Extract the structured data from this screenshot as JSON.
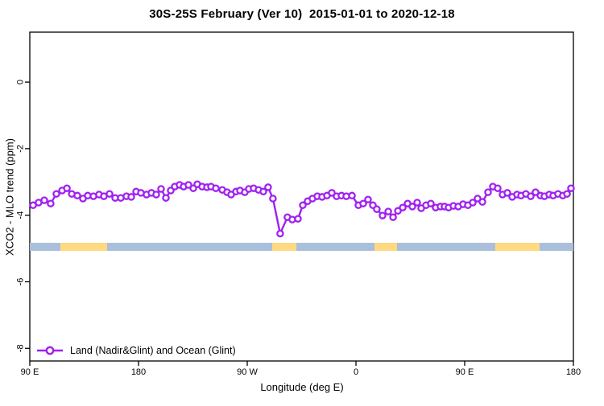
{
  "window": {
    "title": "30S-25S February (Ver 10)  2015-01-01 to 2020-12-18"
  },
  "legend": {
    "label": "Land (Nadir&Glint) and Ocean (Glint)",
    "marker": "open-circle-on-line",
    "marker_color": "#A020F0"
  },
  "chart_data": {
    "type": "line",
    "title": "30S-25S February (Ver 10)  2015-01-01 to 2020-12-18",
    "xlabel": "Longitude (deg E)",
    "ylabel": "XCO2 - MLO trend (ppm)",
    "xlim": [
      90,
      540
    ],
    "ylim": [
      -8.38,
      1.5
    ],
    "grid": false,
    "legend_position": "bottom-left-inside",
    "x_ticks": [
      {
        "pos": 90,
        "label": "90 E"
      },
      {
        "pos": 180,
        "label": "180"
      },
      {
        "pos": 270,
        "label": "90 W"
      },
      {
        "pos": 360,
        "label": "0"
      },
      {
        "pos": 450,
        "label": "90 E"
      },
      {
        "pos": 540,
        "label": "180"
      }
    ],
    "y_ticks": [
      {
        "pos": 0,
        "label": "0"
      },
      {
        "pos": -2,
        "label": "-2"
      },
      {
        "pos": -4,
        "label": "-4"
      },
      {
        "pos": -6,
        "label": "-6"
      },
      {
        "pos": -8,
        "label": "-8"
      }
    ],
    "coverage_bar": {
      "y_value": -4.95,
      "base_color": "#A9BFDB",
      "highlight_color": "#FFD982",
      "base_span": [
        90,
        540
      ],
      "highlight_spans": [
        [
          115.3,
          154
        ],
        [
          290.7,
          310.7
        ],
        [
          375.3,
          394
        ],
        [
          475.3,
          512
        ]
      ]
    },
    "series": [
      {
        "name": "Land (Nadir&Glint) and Ocean (Glint)",
        "color": "#A020F0",
        "marker": "open-circle",
        "points": [
          [
            92.7,
            -3.7
          ],
          [
            97.3,
            -3.62
          ],
          [
            102,
            -3.55
          ],
          [
            107.3,
            -3.65
          ],
          [
            112,
            -3.36
          ],
          [
            116.7,
            -3.26
          ],
          [
            120.7,
            -3.19
          ],
          [
            124.7,
            -3.36
          ],
          [
            129.3,
            -3.41
          ],
          [
            134,
            -3.5
          ],
          [
            138,
            -3.41
          ],
          [
            142.7,
            -3.43
          ],
          [
            147.3,
            -3.38
          ],
          [
            151.3,
            -3.43
          ],
          [
            156,
            -3.36
          ],
          [
            160.7,
            -3.48
          ],
          [
            165.3,
            -3.48
          ],
          [
            170,
            -3.43
          ],
          [
            174,
            -3.45
          ],
          [
            178,
            -3.29
          ],
          [
            182,
            -3.33
          ],
          [
            186.7,
            -3.38
          ],
          [
            190.7,
            -3.33
          ],
          [
            194.7,
            -3.38
          ],
          [
            198.7,
            -3.21
          ],
          [
            202.7,
            -3.48
          ],
          [
            206.7,
            -3.26
          ],
          [
            210,
            -3.14
          ],
          [
            214,
            -3.09
          ],
          [
            217.3,
            -3.14
          ],
          [
            221.3,
            -3.09
          ],
          [
            225.3,
            -3.19
          ],
          [
            228.7,
            -3.07
          ],
          [
            232.7,
            -3.14
          ],
          [
            236.7,
            -3.16
          ],
          [
            240,
            -3.14
          ],
          [
            244,
            -3.19
          ],
          [
            249.3,
            -3.24
          ],
          [
            253.3,
            -3.31
          ],
          [
            256.7,
            -3.38
          ],
          [
            260.7,
            -3.29
          ],
          [
            264,
            -3.26
          ],
          [
            268,
            -3.31
          ],
          [
            271.3,
            -3.21
          ],
          [
            275.3,
            -3.19
          ],
          [
            279.3,
            -3.24
          ],
          [
            283.3,
            -3.29
          ],
          [
            287.3,
            -3.16
          ],
          [
            291.3,
            -3.5
          ],
          [
            297.3,
            -4.55
          ],
          [
            303.3,
            -4.06
          ],
          [
            307.3,
            -4.13
          ],
          [
            312,
            -4.11
          ],
          [
            316,
            -3.7
          ],
          [
            320,
            -3.58
          ],
          [
            324,
            -3.5
          ],
          [
            328,
            -3.43
          ],
          [
            332,
            -3.45
          ],
          [
            336,
            -3.41
          ],
          [
            340,
            -3.33
          ],
          [
            344,
            -3.43
          ],
          [
            348,
            -3.41
          ],
          [
            352,
            -3.43
          ],
          [
            356.7,
            -3.41
          ],
          [
            362,
            -3.7
          ],
          [
            366,
            -3.65
          ],
          [
            370,
            -3.53
          ],
          [
            374,
            -3.7
          ],
          [
            377.3,
            -3.82
          ],
          [
            382,
            -4.01
          ],
          [
            386.7,
            -3.89
          ],
          [
            390.7,
            -4.06
          ],
          [
            394.7,
            -3.87
          ],
          [
            398.7,
            -3.77
          ],
          [
            402.7,
            -3.65
          ],
          [
            406.7,
            -3.74
          ],
          [
            410.7,
            -3.62
          ],
          [
            414,
            -3.79
          ],
          [
            418,
            -3.7
          ],
          [
            422,
            -3.65
          ],
          [
            426,
            -3.77
          ],
          [
            430,
            -3.74
          ],
          [
            433.3,
            -3.74
          ],
          [
            436.7,
            -3.77
          ],
          [
            440.7,
            -3.72
          ],
          [
            444.7,
            -3.74
          ],
          [
            448.7,
            -3.67
          ],
          [
            452.7,
            -3.7
          ],
          [
            456.7,
            -3.62
          ],
          [
            460.7,
            -3.5
          ],
          [
            464.7,
            -3.6
          ],
          [
            469.3,
            -3.31
          ],
          [
            473.3,
            -3.14
          ],
          [
            477.3,
            -3.19
          ],
          [
            481.3,
            -3.38
          ],
          [
            485.3,
            -3.33
          ],
          [
            489.3,
            -3.45
          ],
          [
            493.3,
            -3.38
          ],
          [
            496.7,
            -3.41
          ],
          [
            500.7,
            -3.36
          ],
          [
            504.7,
            -3.43
          ],
          [
            508.7,
            -3.31
          ],
          [
            512.7,
            -3.41
          ],
          [
            516,
            -3.43
          ],
          [
            520,
            -3.38
          ],
          [
            523.3,
            -3.41
          ],
          [
            527.3,
            -3.36
          ],
          [
            531.3,
            -3.41
          ],
          [
            534.7,
            -3.36
          ],
          [
            538,
            -3.19
          ]
        ]
      }
    ]
  }
}
